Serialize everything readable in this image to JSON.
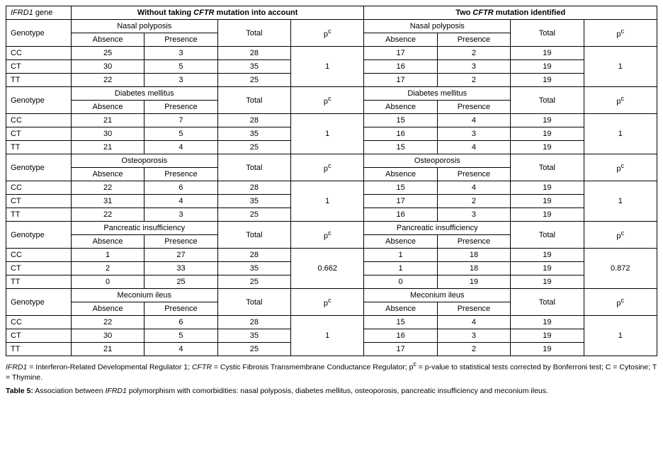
{
  "header": {
    "gene": "IFRD1",
    "gene_suffix": " gene",
    "without": "Without taking ",
    "cftr": "CFTR",
    "mutation_into_account": " mutation into account",
    "two": "Two ",
    "mutation_identified": " mutation identified",
    "genotype": "Genotype",
    "total": "Total",
    "pc": "p",
    "pc_sup": "c",
    "absence": "Absence",
    "presence": "Presence"
  },
  "sections": [
    {
      "name": "Nasal polyposis",
      "left": {
        "rows": [
          {
            "g": "CC",
            "a": "25",
            "p": "3",
            "t": "28"
          },
          {
            "g": "CT",
            "a": "30",
            "p": "5",
            "t": "35"
          },
          {
            "g": "TT",
            "a": "22",
            "p": "3",
            "t": "25"
          }
        ],
        "pval": "1"
      },
      "right": {
        "rows": [
          {
            "g": "CC",
            "a": "17",
            "p": "2",
            "t": "19"
          },
          {
            "g": "CT",
            "a": "16",
            "p": "3",
            "t": "19"
          },
          {
            "g": "TT",
            "a": "17",
            "p": "2",
            "t": "19"
          }
        ],
        "pval": "1"
      }
    },
    {
      "name": "Diabetes mellitus",
      "left": {
        "rows": [
          {
            "g": "CC",
            "a": "21",
            "p": "7",
            "t": "28"
          },
          {
            "g": "CT",
            "a": "30",
            "p": "5",
            "t": "35"
          },
          {
            "g": "TT",
            "a": "21",
            "p": "4",
            "t": "25"
          }
        ],
        "pval": "1"
      },
      "right": {
        "rows": [
          {
            "g": "CC",
            "a": "15",
            "p": "4",
            "t": "19"
          },
          {
            "g": "CT",
            "a": "16",
            "p": "3",
            "t": "19"
          },
          {
            "g": "TT",
            "a": "15",
            "p": "4",
            "t": "19"
          }
        ],
        "pval": "1"
      }
    },
    {
      "name": "Osteoporosis",
      "left": {
        "rows": [
          {
            "g": "CC",
            "a": "22",
            "p": "6",
            "t": "28"
          },
          {
            "g": "CT",
            "a": "31",
            "p": "4",
            "t": "35"
          },
          {
            "g": "TT",
            "a": "22",
            "p": "3",
            "t": "25"
          }
        ],
        "pval": "1"
      },
      "right": {
        "rows": [
          {
            "g": "CC",
            "a": "15",
            "p": "4",
            "t": "19"
          },
          {
            "g": "CT",
            "a": "17",
            "p": "2",
            "t": "19"
          },
          {
            "g": "TT",
            "a": "16",
            "p": "3",
            "t": "19"
          }
        ],
        "pval": "1"
      }
    },
    {
      "name": "Pancreatic insufficiency",
      "left": {
        "rows": [
          {
            "g": "CC",
            "a": "1",
            "p": "27",
            "t": "28"
          },
          {
            "g": "CT",
            "a": "2",
            "p": "33",
            "t": "35"
          },
          {
            "g": "TT",
            "a": "0",
            "p": "25",
            "t": "25"
          }
        ],
        "pval": "0.662"
      },
      "right": {
        "rows": [
          {
            "g": "CC",
            "a": "1",
            "p": "18",
            "t": "19"
          },
          {
            "g": "CT",
            "a": "1",
            "p": "18",
            "t": "19"
          },
          {
            "g": "TT",
            "a": "0",
            "p": "19",
            "t": "19"
          }
        ],
        "pval": "0.872"
      }
    },
    {
      "name": "Meconium ileus",
      "left": {
        "rows": [
          {
            "g": "CC",
            "a": "22",
            "p": "6",
            "t": "28"
          },
          {
            "g": "CT",
            "a": "30",
            "p": "5",
            "t": "35"
          },
          {
            "g": "TT",
            "a": "21",
            "p": "4",
            "t": "25"
          }
        ],
        "pval": "1"
      },
      "right": {
        "rows": [
          {
            "g": "CC",
            "a": "15",
            "p": "4",
            "t": "19"
          },
          {
            "g": "CT",
            "a": "16",
            "p": "3",
            "t": "19"
          },
          {
            "g": "TT",
            "a": "17",
            "p": "2",
            "t": "19"
          }
        ],
        "pval": "1"
      }
    }
  ],
  "footnote": {
    "ifrd1": "IFRD1",
    "ifrd1_def": " = Interferon-Related Developmental Regulator 1; ",
    "cftr": "CFTR",
    "cftr_def": " = Cystic Fibrosis Transmembrane Conductance Regulator; p",
    "pc_sup": "c",
    "pc_def": " = p-value to statistical tests corrected by Bonferroni test; C = Cytosine; T = Thymine."
  },
  "caption": {
    "label": "Table 5:",
    "pre": " Association between ",
    "ifrd1": "IFRD1",
    "post": " polymorphism with comorbidities: nasal polyposis, diabetes mellitus, osteoporosis, pancreatic insufficiency and meconium ileus."
  },
  "layout": {
    "colwidths": [
      "10%",
      "11.25%",
      "11.25%",
      "11.25%",
      "11.25%",
      "11.25%",
      "11.25%",
      "11.25%",
      "11.25%"
    ],
    "font_size_table": 11,
    "font_size_footnote": 10.5,
    "border_color": "#000000",
    "bg_color": "#ffffff"
  }
}
